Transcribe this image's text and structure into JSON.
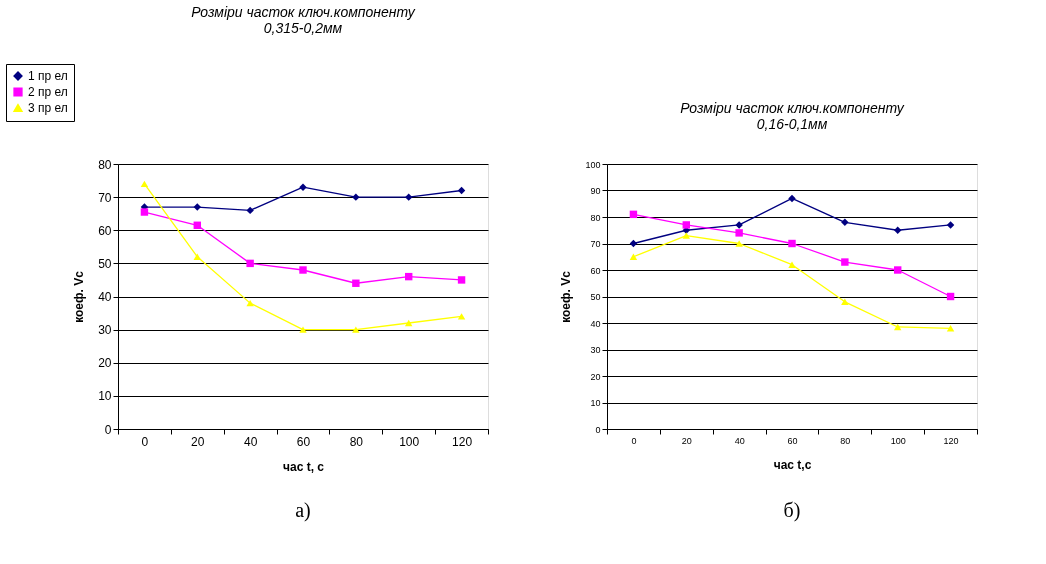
{
  "chart_data": [
    {
      "type": "line",
      "title": [
        "Розміри часток ключ.компоненту",
        "0,315-0,2мм"
      ],
      "xlabel": "час t, с",
      "ylabel": "коеф. Vc",
      "categories": [
        "0",
        "20",
        "40",
        "60",
        "80",
        "100",
        "120"
      ],
      "series": [
        {
          "name": "1 пр ел",
          "color": "#000080",
          "marker": "diamond",
          "values": [
            67,
            67,
            66,
            73,
            70,
            70,
            72
          ]
        },
        {
          "name": "2 пр ел",
          "color": "#ff00ff",
          "marker": "square",
          "values": [
            65.5,
            61.5,
            50,
            48,
            44,
            46,
            45
          ]
        },
        {
          "name": "3 пр ел",
          "color": "#ffff00",
          "marker": "triangle",
          "values": [
            74,
            52,
            38,
            30,
            30,
            32,
            34
          ]
        }
      ],
      "ylim": [
        0,
        80
      ],
      "yticks": [
        0,
        10,
        20,
        30,
        40,
        50,
        60,
        70,
        80
      ],
      "grid": "y",
      "legend": "top left",
      "annotations": [
        "а)"
      ]
    },
    {
      "type": "line",
      "title": [
        "Розміри часток ключ.компоненту",
        "0,16-0,1мм"
      ],
      "xlabel": "час t,с",
      "ylabel": "коеф. Vc",
      "categories": [
        "0",
        "20",
        "40",
        "60",
        "80",
        "100",
        "120"
      ],
      "series": [
        {
          "color": "#000080",
          "marker": "diamond",
          "values": [
            70,
            75,
            77,
            87,
            78,
            75,
            77
          ]
        },
        {
          "color": "#ff00ff",
          "marker": "square",
          "values": [
            81,
            77,
            74,
            70,
            63,
            60,
            50
          ]
        },
        {
          "color": "#ffff00",
          "marker": "triangle",
          "values": [
            65,
            73,
            70,
            62,
            48,
            38.5,
            38
          ]
        }
      ],
      "ylim": [
        0,
        100
      ],
      "yticks": [
        0,
        10,
        20,
        30,
        40,
        50,
        60,
        70,
        80,
        90,
        100
      ],
      "grid": "y",
      "legend": false,
      "annotations": [
        "б)"
      ]
    }
  ]
}
